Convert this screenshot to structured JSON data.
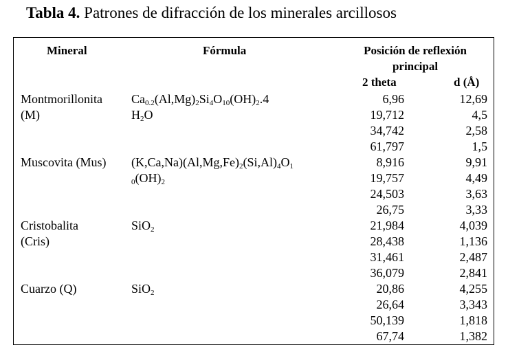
{
  "caption": {
    "label": "Tabla 4.",
    "text": "Patrones de difracción de los minerales arcillosos"
  },
  "headers": {
    "mineral": "Mineral",
    "formula": "Fórmula",
    "position_line1": "Posición de reflexión",
    "position_line2": "principal",
    "two_theta": "2 theta",
    "d": "d (Å)"
  },
  "minerals": [
    {
      "name_line1": "Montmorillonita",
      "name_line2": "(M)",
      "formula_lines": [
        [
          [
            "t",
            "Ca"
          ],
          [
            "s",
            "0.2"
          ],
          [
            "t",
            "(Al,Mg)"
          ],
          [
            "s",
            "2"
          ],
          [
            "t",
            "Si"
          ],
          [
            "s",
            "4"
          ],
          [
            "t",
            "O"
          ],
          [
            "s",
            "10"
          ],
          [
            "t",
            "(OH)"
          ],
          [
            "s",
            "2"
          ],
          [
            "t",
            ".4"
          ]
        ],
        [
          [
            "t",
            "H"
          ],
          [
            "s",
            "2"
          ],
          [
            "t",
            "O"
          ]
        ]
      ],
      "reflections": [
        {
          "two_theta": "6,96",
          "d": "12,69"
        },
        {
          "two_theta": "19,712",
          "d": "4,5"
        },
        {
          "two_theta": "34,742",
          "d": "2,58"
        },
        {
          "two_theta": "61,797",
          "d": "1,5"
        }
      ]
    },
    {
      "name_line1": "Muscovita (Mus)",
      "name_line2": "",
      "formula_lines": [
        [
          [
            "t",
            "(K,Ca,Na)(Al,Mg,Fe)"
          ],
          [
            "s",
            "2"
          ],
          [
            "t",
            "(Si,Al)"
          ],
          [
            "s",
            "4"
          ],
          [
            "t",
            "O"
          ],
          [
            "s",
            "1"
          ]
        ],
        [
          [
            "s",
            "0"
          ],
          [
            "t",
            "(OH)"
          ],
          [
            "s",
            "2"
          ]
        ]
      ],
      "reflections": [
        {
          "two_theta": "8,916",
          "d": "9,91"
        },
        {
          "two_theta": "19,757",
          "d": "4,49"
        },
        {
          "two_theta": "24,503",
          "d": "3,63"
        },
        {
          "two_theta": "26,75",
          "d": "3,33"
        }
      ]
    },
    {
      "name_line1": "Cristobalita",
      "name_line2": "(Cris)",
      "formula_lines": [
        [
          [
            "t",
            "SiO"
          ],
          [
            "s",
            "2"
          ]
        ]
      ],
      "reflections": [
        {
          "two_theta": "21,984",
          "d": "4,039"
        },
        {
          "two_theta": "28,438",
          "d": "1,136"
        },
        {
          "two_theta": "31,461",
          "d": "2,487"
        },
        {
          "two_theta": "36,079",
          "d": "2,841"
        }
      ]
    },
    {
      "name_line1": "Cuarzo (Q)",
      "name_line2": "",
      "formula_lines": [
        [
          [
            "t",
            "SiO"
          ],
          [
            "s",
            "2"
          ]
        ]
      ],
      "reflections": [
        {
          "two_theta": "20,86",
          "d": "4,255"
        },
        {
          "two_theta": "26,64",
          "d": "3,343"
        },
        {
          "two_theta": "50,139",
          "d": "1,818"
        },
        {
          "two_theta": "67,74",
          "d": "1,382"
        }
      ]
    }
  ]
}
